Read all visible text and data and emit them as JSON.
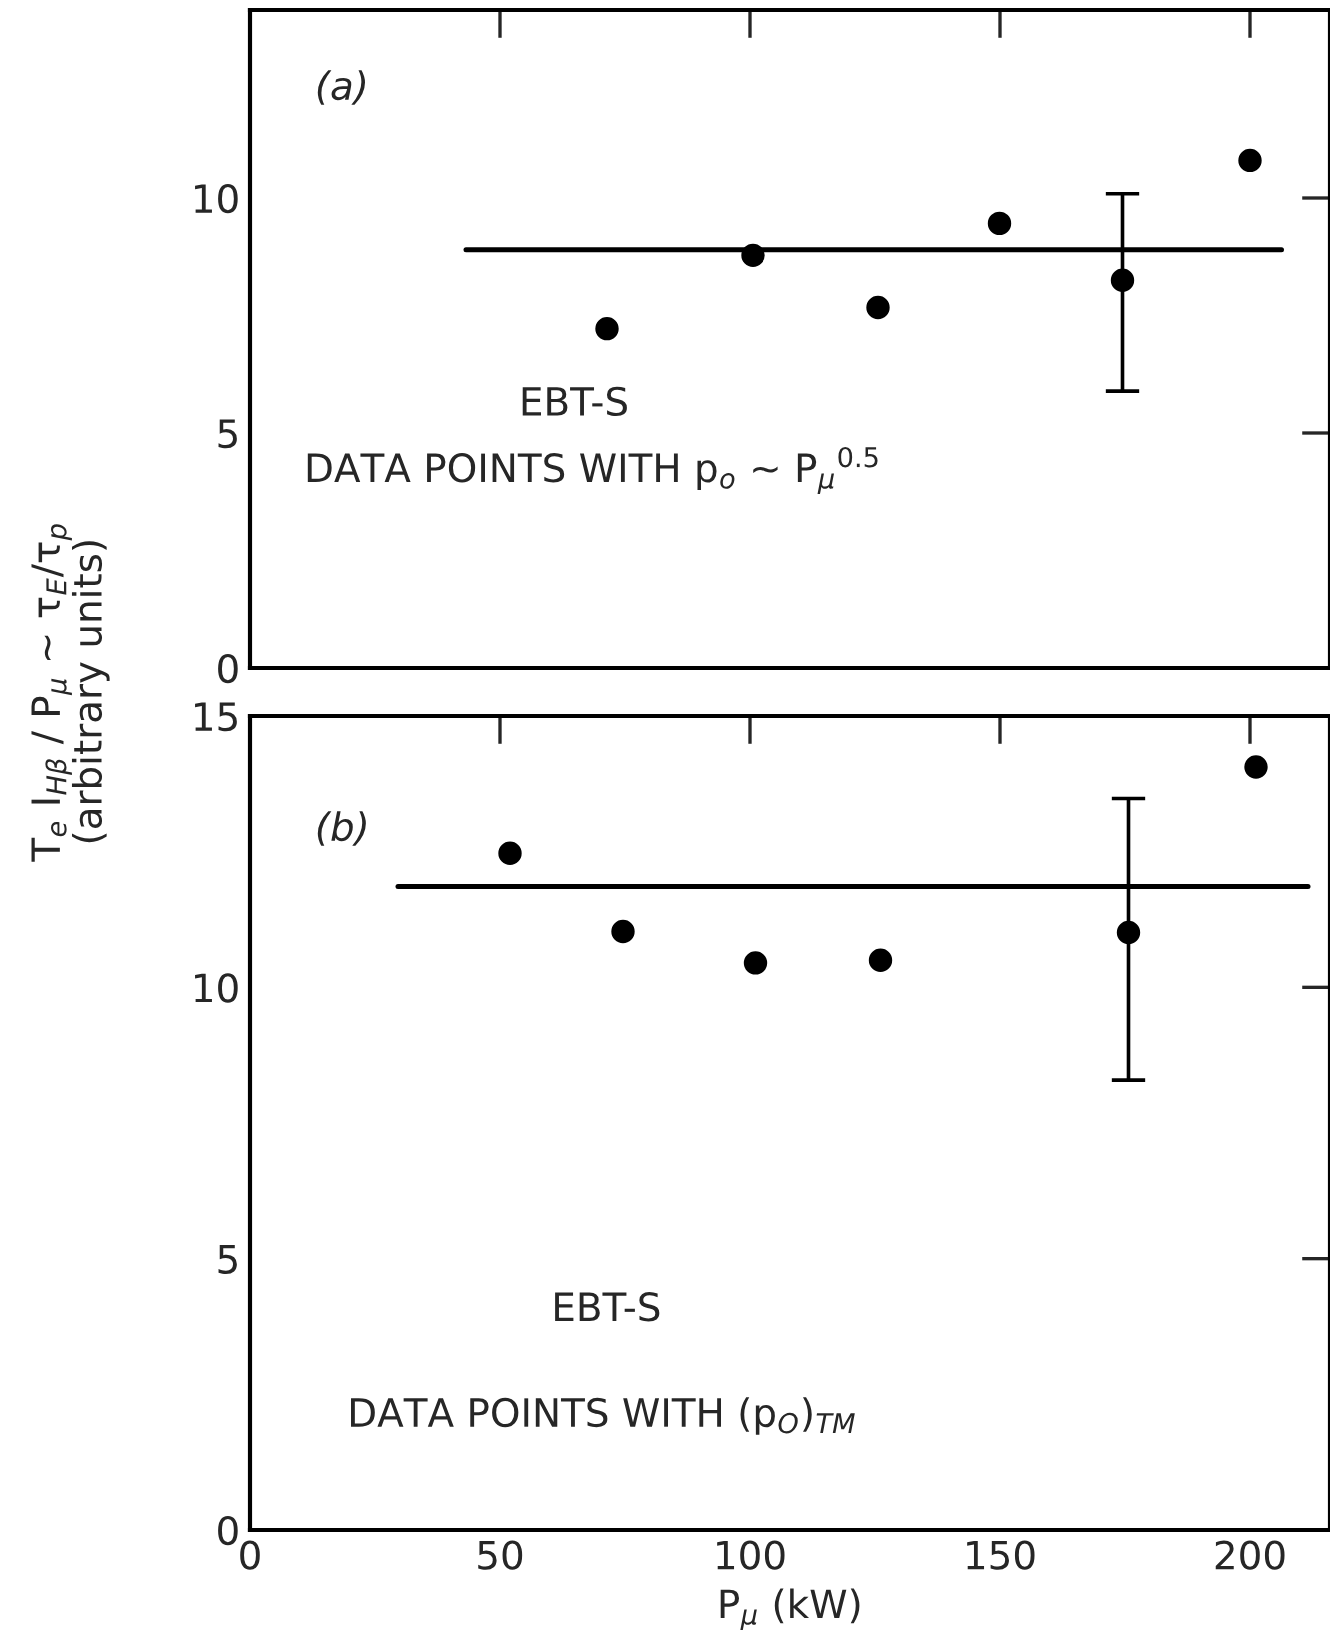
{
  "chart_data": [
    {
      "type": "scatter",
      "ylabel": "T$_{e}$ I$_{Hβ}$ / P$_{μ}$ ~ τ$_{E}$/τ$_{p}$\n(arbitrary units)",
      "annotations": [
        "(a)",
        "EBT-S",
        "DATA POINTS WITH p$_{o}$ ~ P$_{μ}$$^{0.5}$"
      ],
      "series": [
        {
          "color": "#000000",
          "marker": "circle",
          "x": [
            71.4,
            100.6,
            125.6,
            149.9,
            174.5,
            200
          ],
          "values": [
            7.22,
            8.78,
            7.67,
            9.46,
            8.25,
            10.8
          ],
          "errors": [
            null,
            null,
            null,
            null,
            [
              5.89,
              10.09
            ],
            null
          ]
        },
        {
          "type": "line",
          "color": "#000000",
          "marker": "none",
          "x": [
            43.2,
            206.3
          ],
          "values": [
            8.9,
            8.9
          ]
        }
      ],
      "xlim": [
        0,
        216
      ],
      "xticks": [
        0,
        50,
        100,
        150,
        200
      ],
      "ylim": [
        0,
        14
      ],
      "yticks": [
        0,
        5,
        10
      ],
      "tick_labels": "y",
      "grid": false,
      "legend": false
    },
    {
      "type": "scatter",
      "xlabel": "P$_{μ}$ (kW)",
      "annotations": [
        "(b)",
        "EBT-S",
        "DATA POINTS WITH (p$_{O}$)$_{TM}$"
      ],
      "series": [
        {
          "color": "#000000",
          "marker": "circle",
          "x": [
            52,
            74.6,
            101.1,
            126.1,
            175.7,
            201.2
          ],
          "values": [
            12.47,
            11.03,
            10.45,
            10.5,
            11.01,
            14.06
          ],
          "errors": [
            null,
            null,
            null,
            null,
            [
              8.29,
              13.48
            ],
            null
          ]
        },
        {
          "type": "line",
          "color": "#000000",
          "marker": "none",
          "x": [
            29.6,
            211.6
          ],
          "values": [
            11.86,
            11.86
          ]
        }
      ],
      "xlim": [
        0,
        216
      ],
      "xticks": [
        0,
        50,
        100,
        150,
        200
      ],
      "ylim": [
        0,
        15
      ],
      "yticks": [
        0,
        5,
        10,
        15
      ],
      "grid": false,
      "legend": false
    }
  ]
}
